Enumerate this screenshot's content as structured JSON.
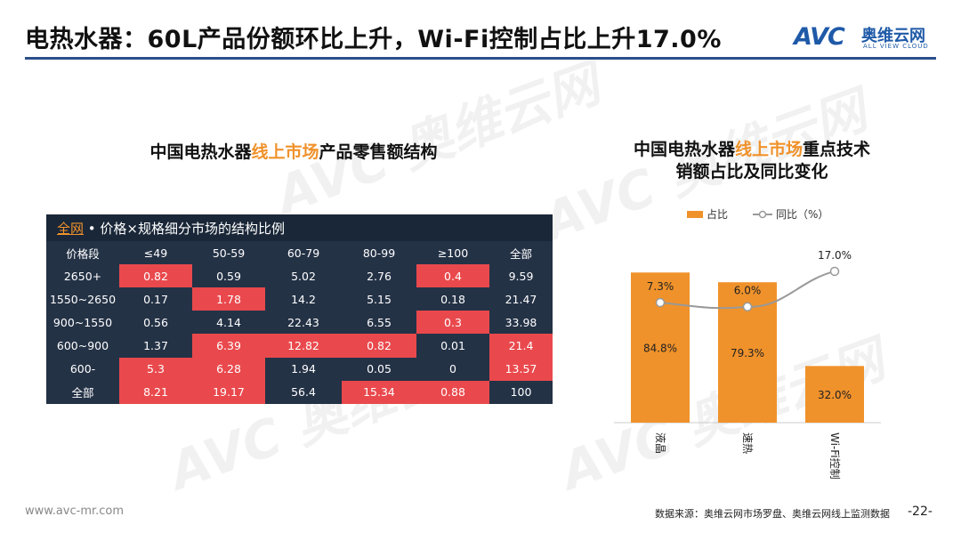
{
  "slide": {
    "title": "电热水器：60L产品份额环比上升，Wi-Fi控制占比上升17.0%",
    "logo_mark": "AVC",
    "logo_cn": "奥维云网",
    "logo_en": "ALL VIEW CLOUD",
    "footer_url": "www.avc-mr.com",
    "footer_source": "数据来源：奥维云网市场罗盘、奥维云网线上监测数据",
    "page_number": "-22-"
  },
  "left_panel": {
    "subtitle_a": "中国电热水器",
    "subtitle_hl": "线上市场",
    "subtitle_b": "产品零售额结构",
    "table_header_hl": "全网",
    "table_header_rest": " • 价格×规格细分市场的结构比例"
  },
  "right_panel": {
    "subtitle_line1_a": "中国电热水器",
    "subtitle_line1_hl": "线上市场",
    "subtitle_line1_b": "重点技术",
    "subtitle_line2": "销额占比及同比变化"
  },
  "colors": {
    "accent": "#f0922b",
    "table_bg": "#243246",
    "hot": "#e9494d",
    "rule": "#2a4f8a",
    "line": "#999999"
  },
  "chart_data": [
    {
      "type": "table",
      "columns": [
        "价格段",
        "≤49",
        "50-59",
        "60-79",
        "80-99",
        "≥100",
        "全部"
      ],
      "rows": [
        {
          "label": "2650+",
          "values": [
            "0.82",
            "0.59",
            "5.02",
            "2.76",
            "0.4",
            "9.59"
          ],
          "hot": [
            true,
            false,
            false,
            false,
            true,
            false
          ]
        },
        {
          "label": "1550~2650",
          "values": [
            "0.17",
            "1.78",
            "14.2",
            "5.15",
            "0.18",
            "21.47"
          ],
          "hot": [
            false,
            true,
            false,
            false,
            false,
            false
          ]
        },
        {
          "label": "900~1550",
          "values": [
            "0.56",
            "4.14",
            "22.43",
            "6.55",
            "0.3",
            "33.98"
          ],
          "hot": [
            false,
            false,
            false,
            false,
            true,
            false
          ]
        },
        {
          "label": "600~900",
          "values": [
            "1.37",
            "6.39",
            "12.82",
            "0.82",
            "0.01",
            "21.4"
          ],
          "hot": [
            false,
            true,
            true,
            true,
            false,
            true
          ]
        },
        {
          "label": "600-",
          "values": [
            "5.3",
            "6.28",
            "1.94",
            "0.05",
            "0",
            "13.57"
          ],
          "hot": [
            true,
            true,
            false,
            false,
            false,
            true
          ]
        },
        {
          "label": "全部",
          "values": [
            "8.21",
            "19.17",
            "56.4",
            "15.34",
            "0.88",
            "100"
          ],
          "hot": [
            true,
            true,
            false,
            true,
            true,
            false
          ]
        }
      ]
    },
    {
      "type": "bar",
      "categories": [
        "液晶",
        "速热",
        "Wi-Fi控制"
      ],
      "series": [
        {
          "name": "占比",
          "values": [
            84.8,
            79.3,
            32.0
          ],
          "labels": [
            "84.8%",
            "79.3%",
            "32.0%"
          ]
        },
        {
          "name": "同比（%）",
          "values": [
            7.3,
            6.0,
            17.0
          ],
          "labels": [
            "7.3%",
            "6.0%",
            "17.0%"
          ]
        }
      ],
      "ylim": [
        0,
        100
      ],
      "line_ylim": [
        -30,
        25
      ],
      "legend": "top"
    }
  ]
}
